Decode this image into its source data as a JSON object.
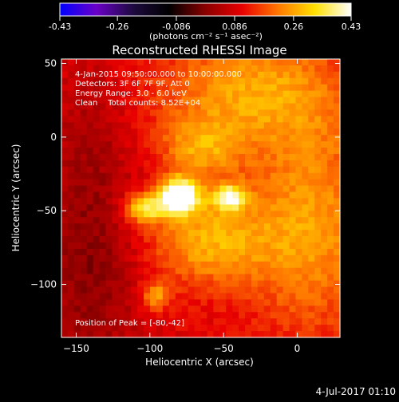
{
  "colorbar": {
    "ticks": [
      -0.43,
      -0.26,
      -0.086,
      0.086,
      0.26,
      0.43
    ],
    "tick_labels": [
      "-0.43",
      "-0.26",
      "-0.086",
      "0.086",
      "0.26",
      "0.43"
    ],
    "units_label": "(photons cm⁻² s⁻¹ asec⁻²)",
    "range": [
      -0.43,
      0.43
    ],
    "colors": [
      "#0000ff",
      "#6a00c8",
      "#1e0a40",
      "#000000",
      "#8a0000",
      "#e80000",
      "#ff7800",
      "#ffe000",
      "#ffffff"
    ]
  },
  "chart_data": {
    "type": "heatmap",
    "title": "Reconstructed RHESSI Image",
    "xlabel": "Heliocentric X (arcsec)",
    "ylabel": "Heliocentric Y (arcsec)",
    "xlim": [
      -160,
      29
    ],
    "ylim": [
      -136,
      53
    ],
    "x_ticks": [
      -150,
      -100,
      -50,
      0
    ],
    "y_ticks": [
      50,
      0,
      -50,
      -100
    ],
    "x_tick_labels": [
      "−150",
      "−100",
      "−50",
      "0"
    ],
    "y_tick_labels": [
      "50",
      "0",
      "−50",
      "−100"
    ],
    "annotations": [
      "4-Jan-2015 09:50:00.000 to 10:00:00.000",
      "Detectors: 3F 6F 7F 9F, Att 0",
      "Energy Range: 3.0 - 6.0 keV",
      "Clean    Total counts: 8.52E+04"
    ],
    "peak_label": "Position of Peak = [-80,-42]",
    "peak": [
      -80,
      -42
    ],
    "sources": [
      {
        "x": -80,
        "y": -40,
        "amp": 0.43,
        "sx": 9,
        "sy": 8
      },
      {
        "x": -103,
        "y": -48,
        "amp": 0.24,
        "sx": 10,
        "sy": 7
      },
      {
        "x": -46,
        "y": -41,
        "amp": 0.26,
        "sx": 8,
        "sy": 6
      },
      {
        "x": -66,
        "y": -8,
        "amp": 0.13,
        "sx": 18,
        "sy": 14
      },
      {
        "x": -60,
        "y": -70,
        "amp": 0.17,
        "sx": 30,
        "sy": 22
      },
      {
        "x": -96,
        "y": -108,
        "amp": 0.15,
        "sx": 7,
        "sy": 7
      },
      {
        "x": -30,
        "y": 30,
        "amp": 0.16,
        "sx": 45,
        "sy": 28
      },
      {
        "x": 10,
        "y": -60,
        "amp": 0.15,
        "sx": 30,
        "sy": 50
      },
      {
        "x": -140,
        "y": -90,
        "amp": -0.1,
        "sx": 25,
        "sy": 50
      },
      {
        "x": -140,
        "y": 10,
        "amp": -0.05,
        "sx": 20,
        "sy": 40
      }
    ],
    "background": 0.1
  },
  "timestamp": "4-Jul-2017 01:10"
}
